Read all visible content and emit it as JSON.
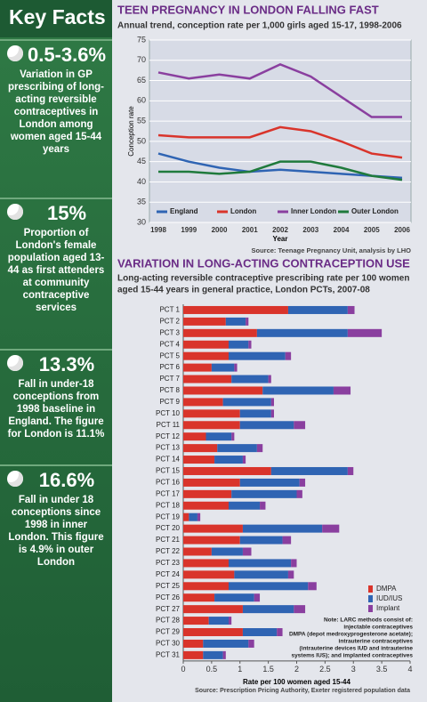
{
  "key_facts": {
    "title": "Key Facts",
    "facts": [
      {
        "figure": "0.5-3.6%",
        "text": "Variation in GP prescribing of long-acting reversible contraceptives in London among women aged 15-44 years"
      },
      {
        "figure": "15%",
        "text": "Proportion of London's female population aged 13-44 as first attenders at community contraceptive services"
      },
      {
        "figure": "13.3%",
        "text": "Fall in under-18 conceptions from 1998 baseline in England. The figure for London is 11.1%"
      },
      {
        "figure": "16.6%",
        "text": "Fall in under 18 conceptions since 1998 in inner London. This figure is 4.9% in outer London"
      }
    ]
  },
  "chart_data": [
    {
      "type": "line",
      "title": "TEEN PREGNANCY IN LONDON FALLING FAST",
      "subtitle": "Annual trend, conception rate per 1,000 girls aged 15-17, 1998-2006",
      "categories": [
        "1998",
        "1999",
        "2000",
        "2001",
        "2002",
        "2003",
        "2004",
        "2005",
        "2006"
      ],
      "x_label": "Year",
      "y_label": "Conception rate",
      "ylim": [
        30,
        75
      ],
      "yticks": [
        30,
        35,
        40,
        45,
        50,
        55,
        60,
        65,
        70,
        75
      ],
      "grid": true,
      "series": [
        {
          "name": "England",
          "color": "#2f64b3",
          "values": [
            47,
            45,
            43.5,
            42.5,
            43,
            42.5,
            42,
            41.5,
            41
          ]
        },
        {
          "name": "London",
          "color": "#d9342b",
          "values": [
            51.5,
            51,
            51,
            51,
            53.5,
            52.5,
            50,
            47,
            46
          ]
        },
        {
          "name": "Inner London",
          "color": "#8a3f9f",
          "values": [
            67,
            65.5,
            66.5,
            65.5,
            69,
            66,
            61,
            56,
            56
          ]
        },
        {
          "name": "Outer London",
          "color": "#1f7a3c",
          "values": [
            42.5,
            42.5,
            42,
            42.5,
            45,
            45,
            43.5,
            41.5,
            40.5
          ]
        }
      ],
      "source": "Source: Teenage Pregnancy Unit, analysis by LHO"
    },
    {
      "type": "stacked_barh",
      "title": "VARIATION IN LONG-ACTING CONTRACEPTION USE",
      "subtitle": [
        "Long-acting reversible contraceptive prescribing rate per 100 women",
        "aged 15-44 years in general practice, London PCTs, 2007-08"
      ],
      "categories": [
        "PCT 1",
        "PCT 2",
        "PCT 3",
        "PCT 4",
        "PCT 5",
        "PCT 6",
        "PCT 7",
        "PCT 8",
        "PCT 9",
        "PCT 10",
        "PCT 11",
        "PCT 12",
        "PCT 13",
        "PCT 14",
        "PCT 15",
        "PCT 16",
        "PCT 17",
        "PCT 18",
        "PCT 19",
        "PCT 20",
        "PCT 21",
        "PCT 22",
        "PCT 23",
        "PCT 24",
        "PCT 25",
        "PCT 26",
        "PCT 27",
        "PCT 28",
        "PCT 29",
        "PCT 30",
        "PCT 31"
      ],
      "x_label": "Rate per 100 women aged 15-44",
      "xlim": [
        0,
        4
      ],
      "xticks": [
        0,
        0.5,
        1,
        1.5,
        2,
        2.5,
        3,
        3.5,
        4
      ],
      "series": [
        {
          "name": "DMPA",
          "color": "#d9342b",
          "values": [
            1.85,
            0.75,
            1.3,
            0.8,
            0.8,
            0.5,
            0.85,
            1.4,
            0.7,
            1.0,
            1.0,
            0.4,
            0.6,
            0.55,
            1.55,
            1.0,
            0.85,
            0.8,
            0.1,
            1.05,
            1.0,
            0.5,
            0.8,
            0.9,
            0.8,
            0.55,
            1.05,
            0.45,
            1.05,
            0.35,
            0.35
          ]
        },
        {
          "name": "IUD/IUS",
          "color": "#2f64b3",
          "values": [
            1.05,
            0.35,
            1.6,
            0.35,
            1.0,
            0.4,
            0.65,
            1.25,
            0.85,
            0.55,
            0.95,
            0.45,
            0.7,
            0.5,
            1.35,
            1.05,
            1.15,
            0.55,
            0.15,
            1.4,
            0.75,
            0.55,
            1.1,
            0.95,
            1.4,
            0.7,
            0.9,
            0.35,
            0.6,
            0.8,
            0.35
          ]
        },
        {
          "name": "Implant",
          "color": "#8a3f9f",
          "values": [
            0.12,
            0.05,
            0.6,
            0.05,
            0.1,
            0.05,
            0.05,
            0.3,
            0.05,
            0.05,
            0.2,
            0.05,
            0.1,
            0.05,
            0.1,
            0.1,
            0.1,
            0.1,
            0.05,
            0.3,
            0.15,
            0.15,
            0.1,
            0.1,
            0.15,
            0.1,
            0.2,
            0.05,
            0.1,
            0.1,
            0.05
          ]
        }
      ],
      "note": [
        "Note: LARC methods consist of:",
        "injectable contraceptives",
        "DMPA (depot medroxyprogesterone acetate);",
        "intrauterine contraceptives",
        "(intrauterine devices IUD and intrauterine",
        "systems IUS); and implanted contraceptives"
      ],
      "source": "Source: Prescription Pricing Authority, Exeter registered population data"
    }
  ]
}
